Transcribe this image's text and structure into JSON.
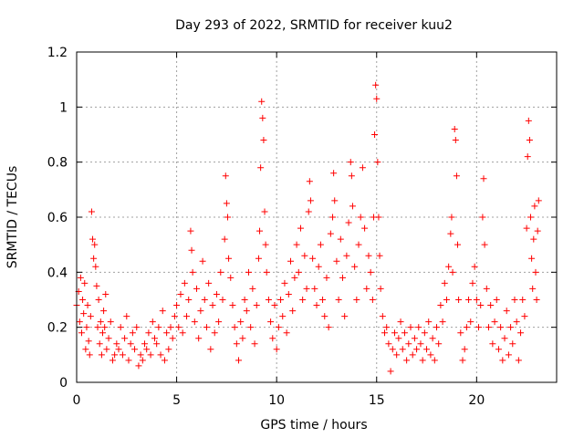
{
  "chart_data": {
    "type": "scatter",
    "title": "Day 293 of 2022, SRMTID for receiver kuu2",
    "xlabel": "GPS time / hours",
    "ylabel": "SRMTID / TECUs",
    "xlim": [
      0,
      24
    ],
    "ylim": [
      0,
      1.2
    ],
    "xticks": [
      0,
      5,
      10,
      15,
      20
    ],
    "xtick_labels": [
      "0",
      "5",
      "10",
      "15",
      "20"
    ],
    "yticks": [
      0,
      0.2,
      0.4,
      0.6,
      0.8,
      1.0,
      1.2
    ],
    "ytick_labels": [
      "0",
      "0.2",
      "0.4",
      "0.6",
      "0.8",
      "1",
      "1.2"
    ],
    "grid": true,
    "marker": "+",
    "color": "#ff0000",
    "series": [
      {
        "name": "SRMTID",
        "points": [
          [
            0.0,
            0.28
          ],
          [
            0.1,
            0.33
          ],
          [
            0.15,
            0.22
          ],
          [
            0.2,
            0.38
          ],
          [
            0.25,
            0.18
          ],
          [
            0.3,
            0.3
          ],
          [
            0.35,
            0.25
          ],
          [
            0.4,
            0.36
          ],
          [
            0.45,
            0.12
          ],
          [
            0.5,
            0.2
          ],
          [
            0.55,
            0.28
          ],
          [
            0.6,
            0.15
          ],
          [
            0.65,
            0.1
          ],
          [
            0.7,
            0.24
          ],
          [
            0.75,
            0.62
          ],
          [
            0.8,
            0.52
          ],
          [
            0.85,
            0.45
          ],
          [
            0.9,
            0.5
          ],
          [
            0.95,
            0.42
          ],
          [
            1.0,
            0.35
          ],
          [
            1.05,
            0.2
          ],
          [
            1.1,
            0.3
          ],
          [
            1.15,
            0.14
          ],
          [
            1.2,
            0.22
          ],
          [
            1.25,
            0.1
          ],
          [
            1.3,
            0.18
          ],
          [
            1.35,
            0.26
          ],
          [
            1.4,
            0.2
          ],
          [
            1.45,
            0.32
          ],
          [
            1.5,
            0.12
          ],
          [
            1.6,
            0.16
          ],
          [
            1.7,
            0.22
          ],
          [
            1.8,
            0.08
          ],
          [
            1.9,
            0.1
          ],
          [
            2.0,
            0.14
          ],
          [
            2.1,
            0.12
          ],
          [
            2.2,
            0.2
          ],
          [
            2.3,
            0.1
          ],
          [
            2.4,
            0.16
          ],
          [
            2.5,
            0.24
          ],
          [
            2.6,
            0.08
          ],
          [
            2.7,
            0.14
          ],
          [
            2.8,
            0.18
          ],
          [
            2.9,
            0.12
          ],
          [
            3.0,
            0.2
          ],
          [
            3.1,
            0.06
          ],
          [
            3.2,
            0.1
          ],
          [
            3.3,
            0.08
          ],
          [
            3.4,
            0.14
          ],
          [
            3.5,
            0.12
          ],
          [
            3.6,
            0.18
          ],
          [
            3.7,
            0.1
          ],
          [
            3.8,
            0.22
          ],
          [
            3.9,
            0.16
          ],
          [
            4.0,
            0.14
          ],
          [
            4.1,
            0.2
          ],
          [
            4.2,
            0.1
          ],
          [
            4.3,
            0.26
          ],
          [
            4.4,
            0.08
          ],
          [
            4.5,
            0.18
          ],
          [
            4.6,
            0.12
          ],
          [
            4.7,
            0.2
          ],
          [
            4.8,
            0.16
          ],
          [
            4.9,
            0.24
          ],
          [
            5.0,
            0.28
          ],
          [
            5.1,
            0.2
          ],
          [
            5.2,
            0.32
          ],
          [
            5.3,
            0.18
          ],
          [
            5.4,
            0.36
          ],
          [
            5.5,
            0.24
          ],
          [
            5.6,
            0.3
          ],
          [
            5.7,
            0.55
          ],
          [
            5.75,
            0.48
          ],
          [
            5.8,
            0.4
          ],
          [
            5.9,
            0.22
          ],
          [
            6.0,
            0.34
          ],
          [
            6.1,
            0.16
          ],
          [
            6.2,
            0.26
          ],
          [
            6.3,
            0.44
          ],
          [
            6.4,
            0.3
          ],
          [
            6.5,
            0.2
          ],
          [
            6.6,
            0.36
          ],
          [
            6.7,
            0.12
          ],
          [
            6.8,
            0.28
          ],
          [
            6.9,
            0.18
          ],
          [
            7.0,
            0.32
          ],
          [
            7.1,
            0.22
          ],
          [
            7.2,
            0.4
          ],
          [
            7.3,
            0.3
          ],
          [
            7.4,
            0.52
          ],
          [
            7.45,
            0.75
          ],
          [
            7.5,
            0.65
          ],
          [
            7.55,
            0.6
          ],
          [
            7.6,
            0.45
          ],
          [
            7.7,
            0.38
          ],
          [
            7.8,
            0.28
          ],
          [
            7.9,
            0.2
          ],
          [
            8.0,
            0.14
          ],
          [
            8.1,
            0.08
          ],
          [
            8.2,
            0.22
          ],
          [
            8.3,
            0.16
          ],
          [
            8.4,
            0.3
          ],
          [
            8.5,
            0.26
          ],
          [
            8.6,
            0.4
          ],
          [
            8.7,
            0.2
          ],
          [
            8.8,
            0.34
          ],
          [
            8.9,
            0.14
          ],
          [
            9.0,
            0.28
          ],
          [
            9.1,
            0.45
          ],
          [
            9.15,
            0.55
          ],
          [
            9.2,
            0.78
          ],
          [
            9.25,
            1.02
          ],
          [
            9.3,
            0.96
          ],
          [
            9.35,
            0.88
          ],
          [
            9.4,
            0.62
          ],
          [
            9.45,
            0.5
          ],
          [
            9.5,
            0.4
          ],
          [
            9.6,
            0.3
          ],
          [
            9.7,
            0.22
          ],
          [
            9.8,
            0.16
          ],
          [
            9.9,
            0.28
          ],
          [
            10.0,
            0.12
          ],
          [
            10.1,
            0.2
          ],
          [
            10.2,
            0.3
          ],
          [
            10.3,
            0.24
          ],
          [
            10.4,
            0.36
          ],
          [
            10.5,
            0.18
          ],
          [
            10.6,
            0.32
          ],
          [
            10.7,
            0.44
          ],
          [
            10.8,
            0.26
          ],
          [
            10.9,
            0.38
          ],
          [
            11.0,
            0.5
          ],
          [
            11.1,
            0.4
          ],
          [
            11.2,
            0.56
          ],
          [
            11.3,
            0.3
          ],
          [
            11.4,
            0.46
          ],
          [
            11.5,
            0.34
          ],
          [
            11.6,
            0.62
          ],
          [
            11.65,
            0.73
          ],
          [
            11.7,
            0.66
          ],
          [
            11.8,
            0.45
          ],
          [
            11.9,
            0.34
          ],
          [
            12.0,
            0.28
          ],
          [
            12.1,
            0.42
          ],
          [
            12.2,
            0.5
          ],
          [
            12.3,
            0.3
          ],
          [
            12.4,
            0.24
          ],
          [
            12.5,
            0.38
          ],
          [
            12.6,
            0.2
          ],
          [
            12.7,
            0.54
          ],
          [
            12.8,
            0.6
          ],
          [
            12.85,
            0.76
          ],
          [
            12.9,
            0.66
          ],
          [
            13.0,
            0.44
          ],
          [
            13.1,
            0.3
          ],
          [
            13.2,
            0.52
          ],
          [
            13.3,
            0.38
          ],
          [
            13.4,
            0.24
          ],
          [
            13.5,
            0.46
          ],
          [
            13.6,
            0.58
          ],
          [
            13.7,
            0.8
          ],
          [
            13.75,
            0.75
          ],
          [
            13.8,
            0.64
          ],
          [
            13.9,
            0.42
          ],
          [
            14.0,
            0.3
          ],
          [
            14.1,
            0.5
          ],
          [
            14.2,
            0.6
          ],
          [
            14.3,
            0.78
          ],
          [
            14.4,
            0.56
          ],
          [
            14.5,
            0.34
          ],
          [
            14.6,
            0.46
          ],
          [
            14.7,
            0.4
          ],
          [
            14.8,
            0.3
          ],
          [
            14.85,
            0.6
          ],
          [
            14.9,
            0.9
          ],
          [
            14.95,
            1.08
          ],
          [
            15.0,
            1.03
          ],
          [
            15.05,
            0.8
          ],
          [
            15.1,
            0.6
          ],
          [
            15.15,
            0.46
          ],
          [
            15.2,
            0.34
          ],
          [
            15.3,
            0.24
          ],
          [
            15.4,
            0.18
          ],
          [
            15.5,
            0.2
          ],
          [
            15.6,
            0.14
          ],
          [
            15.7,
            0.04
          ],
          [
            15.8,
            0.12
          ],
          [
            15.9,
            0.18
          ],
          [
            16.0,
            0.1
          ],
          [
            16.1,
            0.16
          ],
          [
            16.2,
            0.22
          ],
          [
            16.3,
            0.12
          ],
          [
            16.4,
            0.18
          ],
          [
            16.5,
            0.08
          ],
          [
            16.6,
            0.14
          ],
          [
            16.7,
            0.2
          ],
          [
            16.8,
            0.1
          ],
          [
            16.9,
            0.16
          ],
          [
            17.0,
            0.12
          ],
          [
            17.1,
            0.2
          ],
          [
            17.2,
            0.14
          ],
          [
            17.3,
            0.08
          ],
          [
            17.4,
            0.18
          ],
          [
            17.5,
            0.12
          ],
          [
            17.6,
            0.22
          ],
          [
            17.7,
            0.1
          ],
          [
            17.8,
            0.16
          ],
          [
            17.9,
            0.08
          ],
          [
            18.0,
            0.2
          ],
          [
            18.1,
            0.14
          ],
          [
            18.2,
            0.28
          ],
          [
            18.3,
            0.22
          ],
          [
            18.4,
            0.36
          ],
          [
            18.5,
            0.3
          ],
          [
            18.6,
            0.42
          ],
          [
            18.7,
            0.54
          ],
          [
            18.75,
            0.6
          ],
          [
            18.8,
            0.4
          ],
          [
            18.9,
            0.92
          ],
          [
            18.95,
            0.88
          ],
          [
            19.0,
            0.75
          ],
          [
            19.05,
            0.5
          ],
          [
            19.1,
            0.3
          ],
          [
            19.2,
            0.18
          ],
          [
            19.3,
            0.08
          ],
          [
            19.4,
            0.12
          ],
          [
            19.5,
            0.2
          ],
          [
            19.6,
            0.3
          ],
          [
            19.7,
            0.22
          ],
          [
            19.8,
            0.36
          ],
          [
            19.9,
            0.42
          ],
          [
            20.0,
            0.3
          ],
          [
            20.1,
            0.2
          ],
          [
            20.2,
            0.28
          ],
          [
            20.3,
            0.6
          ],
          [
            20.35,
            0.74
          ],
          [
            20.4,
            0.5
          ],
          [
            20.5,
            0.34
          ],
          [
            20.6,
            0.2
          ],
          [
            20.7,
            0.28
          ],
          [
            20.8,
            0.14
          ],
          [
            20.9,
            0.22
          ],
          [
            21.0,
            0.3
          ],
          [
            21.1,
            0.12
          ],
          [
            21.2,
            0.2
          ],
          [
            21.3,
            0.08
          ],
          [
            21.4,
            0.16
          ],
          [
            21.5,
            0.26
          ],
          [
            21.6,
            0.1
          ],
          [
            21.7,
            0.2
          ],
          [
            21.8,
            0.14
          ],
          [
            21.9,
            0.3
          ],
          [
            22.0,
            0.22
          ],
          [
            22.1,
            0.08
          ],
          [
            22.2,
            0.18
          ],
          [
            22.3,
            0.3
          ],
          [
            22.4,
            0.24
          ],
          [
            22.5,
            0.56
          ],
          [
            22.55,
            0.82
          ],
          [
            22.6,
            0.95
          ],
          [
            22.65,
            0.88
          ],
          [
            22.7,
            0.6
          ],
          [
            22.75,
            0.45
          ],
          [
            22.8,
            0.34
          ],
          [
            22.85,
            0.52
          ],
          [
            22.9,
            0.64
          ],
          [
            22.95,
            0.4
          ],
          [
            23.0,
            0.3
          ],
          [
            23.05,
            0.55
          ],
          [
            23.1,
            0.66
          ]
        ]
      }
    ]
  }
}
